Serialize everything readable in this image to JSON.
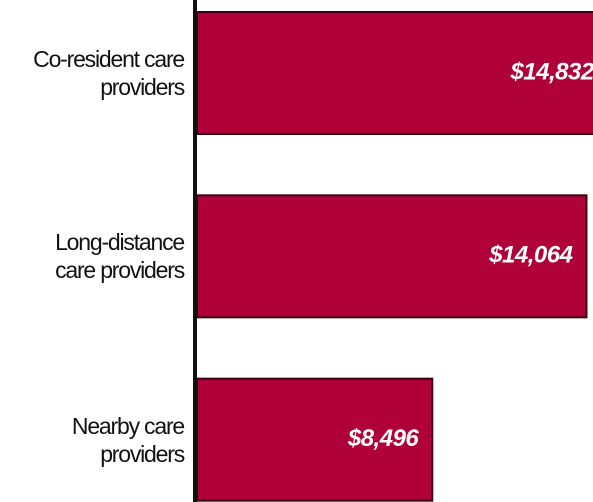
{
  "chart_data": {
    "type": "barh",
    "categories": [
      "Co-resident care providers",
      "Long-distance care providers",
      "Nearby care providers"
    ],
    "values": [
      14832,
      14064,
      8496
    ],
    "value_labels": [
      "$14,832",
      "$14,064",
      "$8,496"
    ],
    "color": "#b0003a",
    "xlim": [
      0,
      14300
    ]
  }
}
